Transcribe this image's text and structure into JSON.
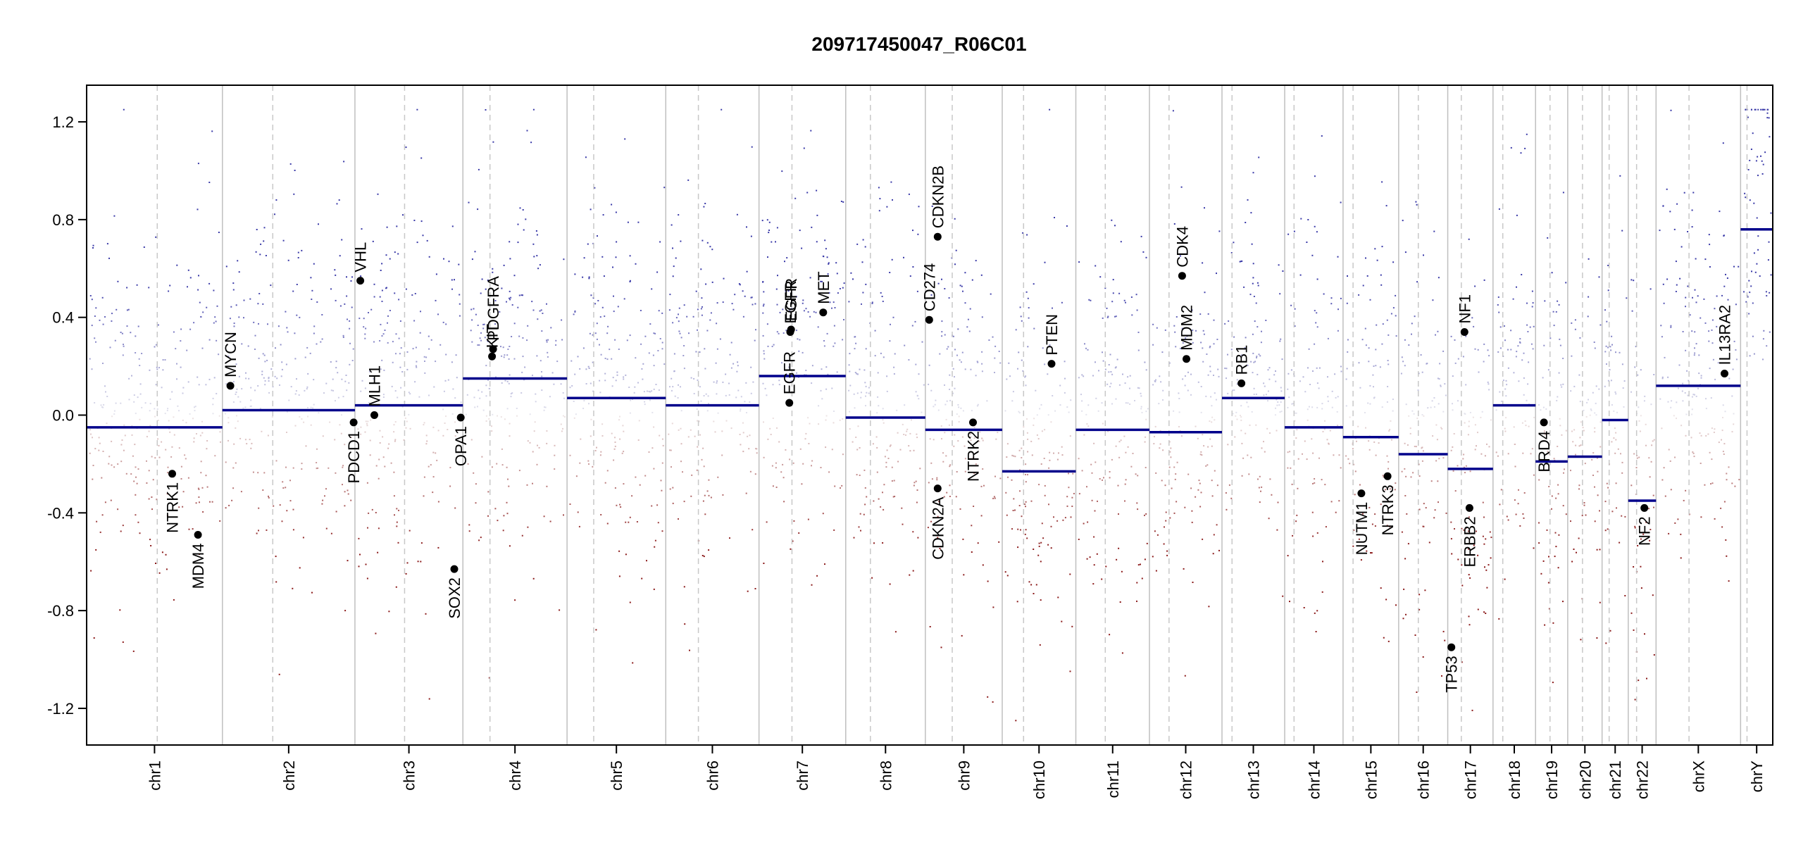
{
  "chart_data": {
    "type": "scatter",
    "title": "209717450047_R06C01",
    "xlabel": "",
    "ylabel": "",
    "ylim": [
      -1.35,
      1.35
    ],
    "yticks": [
      1.2,
      0.8,
      0.4,
      0.0,
      -0.4,
      -0.8,
      -1.2
    ],
    "ytick_labels": [
      "1.2",
      "0.8",
      "0.4",
      "0.0",
      "-0.4",
      "-0.8",
      "-1.2"
    ],
    "colors": {
      "gain": "#3a3aa8",
      "loss": "#8b1a1a",
      "segment": "#00008b",
      "grid": "#bfbfbf",
      "axis": "#000000",
      "gene": "#000000"
    },
    "chromosomes": [
      {
        "name": "chr1",
        "length": 249,
        "centromere": 0.52,
        "segment": -0.05
      },
      {
        "name": "chr2",
        "length": 243,
        "centromere": 0.38,
        "segment": 0.02
      },
      {
        "name": "chr3",
        "length": 198,
        "centromere": 0.46,
        "segment": 0.04
      },
      {
        "name": "chr4",
        "length": 191,
        "centromere": 0.26,
        "segment": 0.15
      },
      {
        "name": "chr5",
        "length": 181,
        "centromere": 0.27,
        "segment": 0.07
      },
      {
        "name": "chr6",
        "length": 171,
        "centromere": 0.35,
        "segment": 0.04
      },
      {
        "name": "chr7",
        "length": 159,
        "centromere": 0.38,
        "segment": 0.16
      },
      {
        "name": "chr8",
        "length": 146,
        "centromere": 0.31,
        "segment": -0.01
      },
      {
        "name": "chr9",
        "length": 141,
        "centromere": 0.35,
        "segment": -0.06
      },
      {
        "name": "chr10",
        "length": 135,
        "centromere": 0.29,
        "segment": -0.23
      },
      {
        "name": "chr11",
        "length": 135,
        "centromere": 0.4,
        "segment": -0.06
      },
      {
        "name": "chr12",
        "length": 133,
        "centromere": 0.27,
        "segment": -0.07
      },
      {
        "name": "chr13",
        "length": 115,
        "centromere": 0.16,
        "segment": 0.07
      },
      {
        "name": "chr14",
        "length": 107,
        "centromere": 0.16,
        "segment": -0.05
      },
      {
        "name": "chr15",
        "length": 102,
        "centromere": 0.18,
        "segment": -0.09
      },
      {
        "name": "chr16",
        "length": 90,
        "centromere": 0.4,
        "segment": -0.16
      },
      {
        "name": "chr17",
        "length": 83,
        "centromere": 0.3,
        "segment": -0.22
      },
      {
        "name": "chr18",
        "length": 78,
        "centromere": 0.23,
        "segment": 0.04
      },
      {
        "name": "chr19",
        "length": 59,
        "centromere": 0.45,
        "segment": -0.19
      },
      {
        "name": "chr20",
        "length": 63,
        "centromere": 0.43,
        "segment": -0.17
      },
      {
        "name": "chr21",
        "length": 48,
        "centromere": 0.27,
        "segment": -0.02
      },
      {
        "name": "chr22",
        "length": 51,
        "centromere": 0.3,
        "segment": -0.35
      },
      {
        "name": "chrX",
        "length": 155,
        "centromere": 0.39,
        "segment": 0.12
      },
      {
        "name": "chrY",
        "length": 59,
        "centromere": 0.2,
        "segment": 0.76
      }
    ],
    "genes": [
      {
        "name": "NTRK1",
        "chr": "chr1",
        "pos": 0.63,
        "value": -0.24,
        "label_side": "below"
      },
      {
        "name": "MDM4",
        "chr": "chr1",
        "pos": 0.82,
        "value": -0.49,
        "label_side": "below"
      },
      {
        "name": "MYCN",
        "chr": "chr2",
        "pos": 0.06,
        "value": 0.12,
        "label_side": "above"
      },
      {
        "name": "PDCD1",
        "chr": "chr2",
        "pos": 0.99,
        "value": -0.03,
        "label_side": "below"
      },
      {
        "name": "VHL",
        "chr": "chr3",
        "pos": 0.05,
        "value": 0.55,
        "label_side": "above"
      },
      {
        "name": "MLH1",
        "chr": "chr3",
        "pos": 0.18,
        "value": 0.0,
        "label_side": "above"
      },
      {
        "name": "SOX2",
        "chr": "chr3",
        "pos": 0.92,
        "value": -0.63,
        "label_side": "below"
      },
      {
        "name": "OPA1",
        "chr": "chr3",
        "pos": 0.98,
        "value": -0.01,
        "label_side": "below"
      },
      {
        "name": "KIT",
        "chr": "chr4",
        "pos": 0.28,
        "value": 0.24,
        "label_side": "above"
      },
      {
        "name": "PDGFRA",
        "chr": "chr4",
        "pos": 0.29,
        "value": 0.27,
        "label_side": "above"
      },
      {
        "name": "EGFR",
        "chr": "chr7",
        "pos": 0.35,
        "value": 0.05,
        "label_side": "above"
      },
      {
        "name": "EGFR",
        "chr": "chr7",
        "pos": 0.36,
        "value": 0.34,
        "label_side": "above"
      },
      {
        "name": "EGFR",
        "chr": "chr7",
        "pos": 0.37,
        "value": 0.35,
        "label_side": "above"
      },
      {
        "name": "MET",
        "chr": "chr7",
        "pos": 0.74,
        "value": 0.42,
        "label_side": "above"
      },
      {
        "name": "CD274",
        "chr": "chr9",
        "pos": 0.05,
        "value": 0.39,
        "label_side": "above"
      },
      {
        "name": "CDKN2B",
        "chr": "chr9",
        "pos": 0.16,
        "value": 0.73,
        "label_side": "above"
      },
      {
        "name": "CDKN2A",
        "chr": "chr9",
        "pos": 0.16,
        "value": -0.3,
        "label_side": "below"
      },
      {
        "name": "NTRK2",
        "chr": "chr9",
        "pos": 0.62,
        "value": -0.03,
        "label_side": "below"
      },
      {
        "name": "PTEN",
        "chr": "chr10",
        "pos": 0.67,
        "value": 0.21,
        "label_side": "above"
      },
      {
        "name": "MDM2",
        "chr": "chr12",
        "pos": 0.51,
        "value": 0.23,
        "label_side": "above"
      },
      {
        "name": "CDK4",
        "chr": "chr12",
        "pos": 0.45,
        "value": 0.57,
        "label_side": "above"
      },
      {
        "name": "RB1",
        "chr": "chr13",
        "pos": 0.31,
        "value": 0.13,
        "label_side": "above"
      },
      {
        "name": "NUTM1",
        "chr": "chr15",
        "pos": 0.33,
        "value": -0.32,
        "label_side": "below"
      },
      {
        "name": "NTRK3",
        "chr": "chr15",
        "pos": 0.8,
        "value": -0.25,
        "label_side": "below"
      },
      {
        "name": "TP53",
        "chr": "chr17",
        "pos": 0.08,
        "value": -0.95,
        "label_side": "below"
      },
      {
        "name": "NF1",
        "chr": "chr17",
        "pos": 0.37,
        "value": 0.34,
        "label_side": "above"
      },
      {
        "name": "ERBB2",
        "chr": "chr17",
        "pos": 0.48,
        "value": -0.38,
        "label_side": "below"
      },
      {
        "name": "BRD4",
        "chr": "chr19",
        "pos": 0.26,
        "value": -0.03,
        "label_side": "below"
      },
      {
        "name": "NF2",
        "chr": "chr22",
        "pos": 0.58,
        "value": -0.38,
        "label_side": "below"
      },
      {
        "name": "IL13RA2",
        "chr": "chrX",
        "pos": 0.81,
        "value": 0.17,
        "label_side": "above"
      }
    ]
  }
}
